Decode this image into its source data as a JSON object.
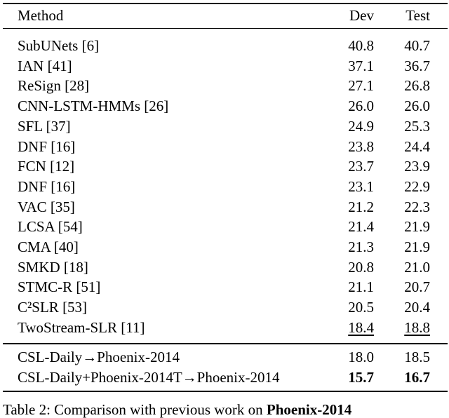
{
  "table": {
    "header": [
      "Method",
      "Dev",
      "Test"
    ],
    "groups": [
      [
        [
          "SubUNets [6]",
          "40.8",
          "40.7"
        ],
        [
          "IAN [41]",
          "37.1",
          "36.7"
        ],
        [
          "ReSign [28]",
          "27.1",
          "26.8"
        ],
        [
          "CNN-LSTM-HMMs [26]",
          "26.0",
          "26.0"
        ],
        [
          "SFL [37]",
          "24.9",
          "25.3"
        ],
        [
          "DNF [16]",
          "23.8",
          "24.4"
        ],
        [
          "FCN [12]",
          "23.7",
          "23.9"
        ],
        [
          "DNF [16]",
          "23.1",
          "22.9"
        ],
        [
          "VAC [35]",
          "21.2",
          "22.3"
        ],
        [
          "LCSA [54]",
          "21.4",
          "21.9"
        ],
        [
          "CMA [40]",
          "21.3",
          "21.9"
        ],
        [
          "SMKD [18]",
          "20.8",
          "21.0"
        ],
        [
          "STMC-R [51]",
          "21.1",
          "20.7"
        ],
        [
          "C²SLR [53]",
          "20.5",
          "20.4"
        ],
        [
          "TwoStream-SLR [11]",
          "18.4",
          "18.8"
        ]
      ],
      [
        [
          "CSL-Daily→Phoenix-2014",
          "18.0",
          "18.5"
        ],
        [
          "CSL-Daily+Phoenix-2014T→Phoenix-2014",
          "15.7",
          "16.7"
        ]
      ]
    ]
  },
  "caption": {
    "text": "Table 2: Comparison with previous work on",
    "bold": "Phoenix-2014"
  }
}
